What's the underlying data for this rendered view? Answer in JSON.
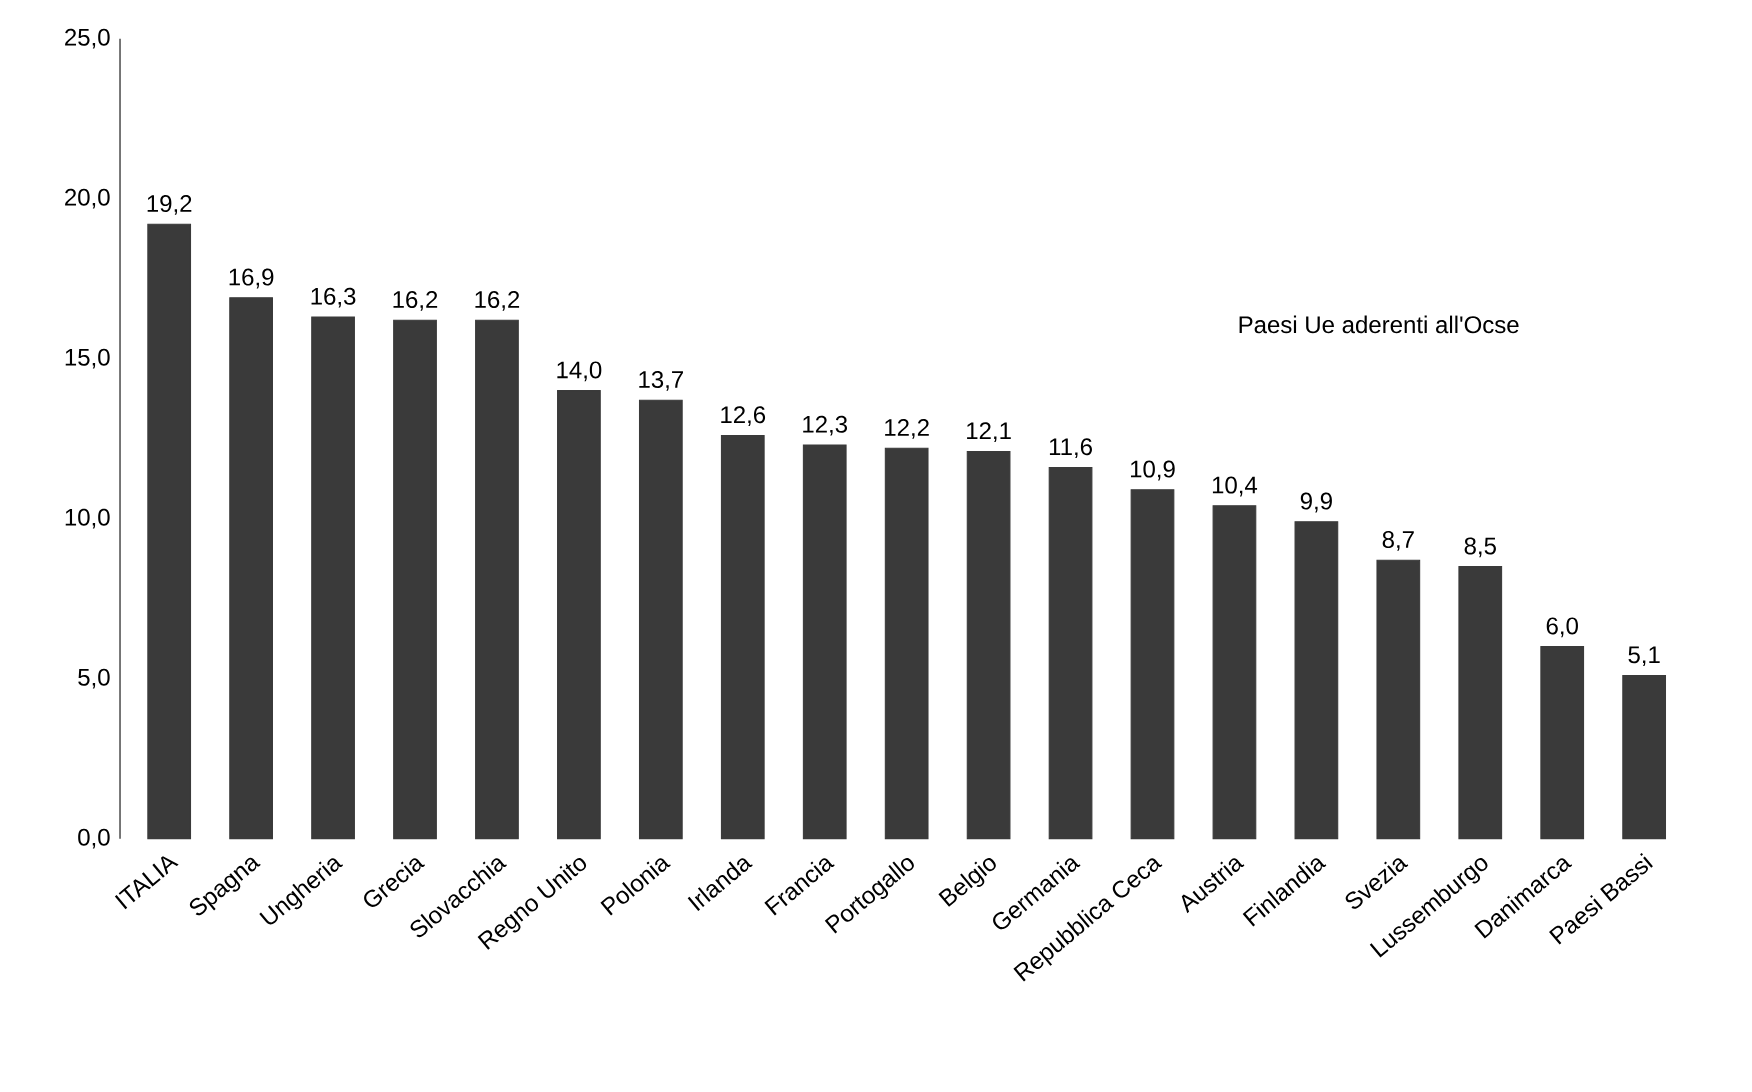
{
  "chart_data": {
    "type": "bar",
    "categories": [
      "ITALIA",
      "Spagna",
      "Ungheria",
      "Grecia",
      "Slovacchia",
      "Regno Unito",
      "Polonia",
      "Irlanda",
      "Francia",
      "Portogallo",
      "Belgio",
      "Germania",
      "Repubblica Ceca",
      "Austria",
      "Finlandia",
      "Svezia",
      "Lussemburgo",
      "Danimarca",
      "Paesi Bassi"
    ],
    "values": [
      19.2,
      16.9,
      16.3,
      16.2,
      16.2,
      14.0,
      13.7,
      12.6,
      12.3,
      12.2,
      12.1,
      11.6,
      10.9,
      10.4,
      9.9,
      8.7,
      8.5,
      6.0,
      5.1
    ],
    "value_labels": [
      "19,2",
      "16,9",
      "16,3",
      "16,2",
      "16,2",
      "14,0",
      "13,7",
      "12,6",
      "12,3",
      "12,2",
      "12,1",
      "11,6",
      "10,9",
      "10,4",
      "9,9",
      "8,7",
      "8,5",
      "6,0",
      "5,1"
    ],
    "color": "#3a3a3a",
    "ylim": [
      0,
      25
    ],
    "yticks": [
      {
        "value": 0,
        "label": "0,0"
      },
      {
        "value": 5,
        "label": "5,0"
      },
      {
        "value": 10,
        "label": "10,0"
      },
      {
        "value": 15,
        "label": "15,0"
      },
      {
        "value": 20,
        "label": "20,0"
      },
      {
        "value": 25,
        "label": "25,0"
      }
    ],
    "annotations": [
      "Paesi Ue aderenti all'Ocse"
    ]
  }
}
